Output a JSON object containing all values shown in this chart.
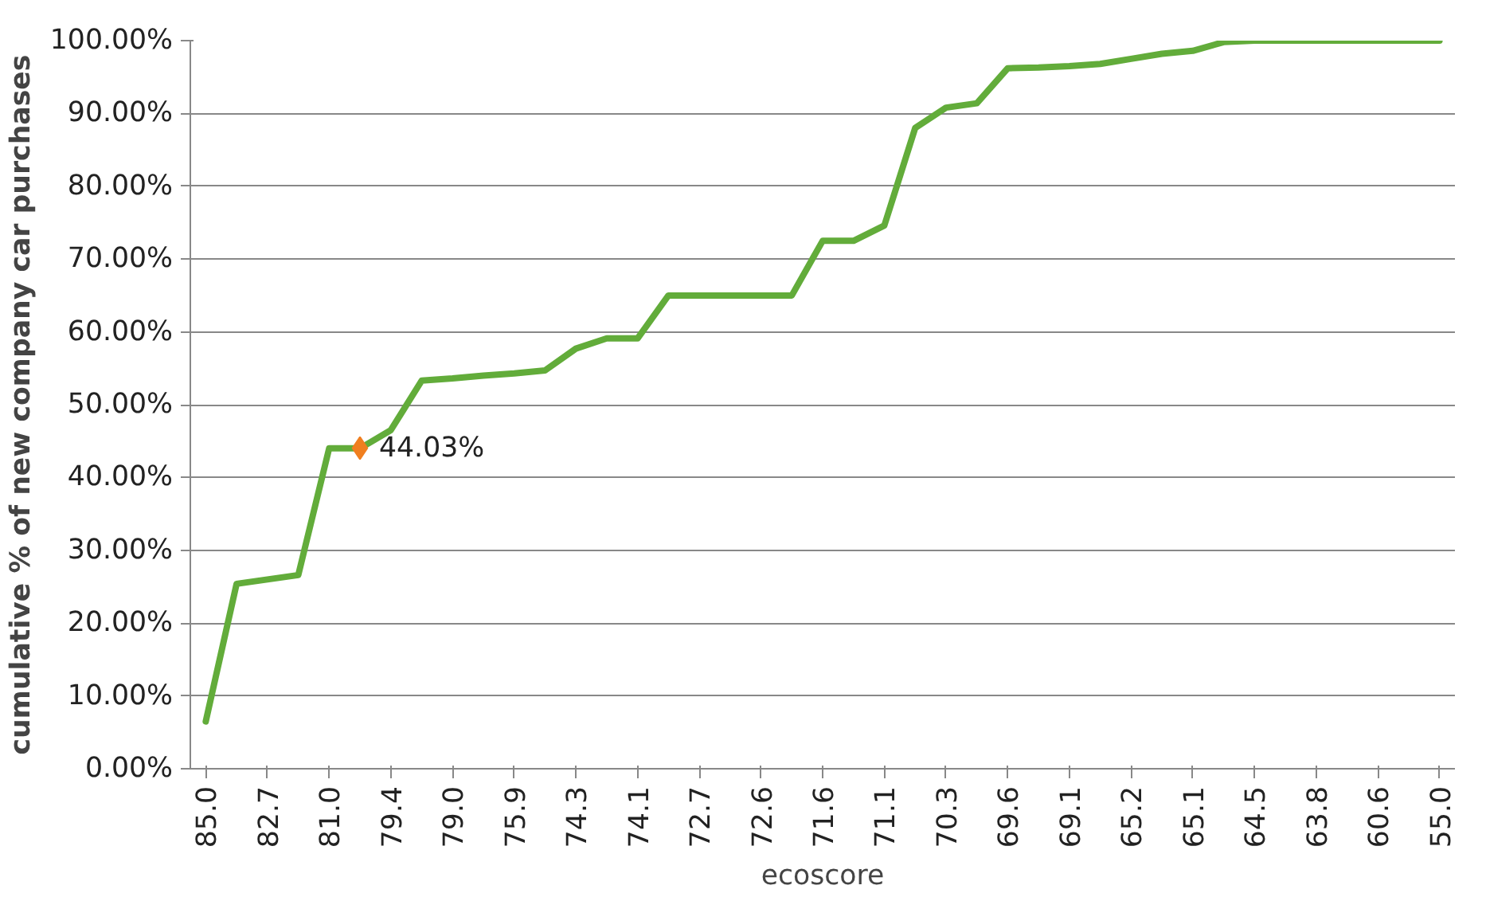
{
  "chart_data": {
    "type": "line",
    "xlabel": "ecoscore",
    "ylabel": "cumulative % of new company car purchases",
    "categories": [
      "85.0",
      null,
      "82.7",
      null,
      "81.0",
      null,
      "79.4",
      null,
      "79.0",
      null,
      "75.9",
      null,
      "74.3",
      null,
      "74.1",
      null,
      "72.7",
      null,
      "72.6",
      null,
      "71.6",
      null,
      "71.1",
      null,
      "70.3",
      null,
      "69.6",
      null,
      "69.1",
      null,
      "65.2",
      null,
      "65.1",
      null,
      "64.5",
      null,
      "63.8",
      null,
      "60.6",
      null,
      "55.0"
    ],
    "series": [
      {
        "color": "#62ac3a",
        "values": [
          6.5,
          25.4,
          26.0,
          26.6,
          44.0,
          44.0,
          46.5,
          53.3,
          53.6,
          54.0,
          54.3,
          54.7,
          57.7,
          59.1,
          59.1,
          65.0,
          65.0,
          65.0,
          65.0,
          65.0,
          72.5,
          72.5,
          74.6,
          88.0,
          90.8,
          91.4,
          96.2,
          96.3,
          96.5,
          96.8,
          97.5,
          98.2,
          98.6,
          99.8,
          100,
          100,
          100,
          100,
          100,
          100,
          100
        ]
      },
      {
        "type": "scatter",
        "color": "#f07f20",
        "marker": "diamond",
        "values": [
          null,
          null,
          null,
          null,
          null,
          44.03,
          null,
          null,
          null,
          null,
          null,
          null,
          null,
          null,
          null,
          null,
          null,
          null,
          null,
          null,
          null,
          null,
          null,
          null,
          null,
          null,
          null,
          null,
          null,
          null,
          null,
          null,
          null,
          null,
          null,
          null,
          null,
          null,
          null,
          null,
          null
        ],
        "value_labels": [
          null,
          null,
          null,
          null,
          null,
          "44.03%",
          null,
          null,
          null,
          null,
          null,
          null,
          null,
          null,
          null,
          null,
          null,
          null,
          null,
          null,
          null,
          null,
          null,
          null,
          null,
          null,
          null,
          null,
          null,
          null,
          null,
          null,
          null,
          null,
          null,
          null,
          null,
          null,
          null,
          null,
          null
        ]
      }
    ],
    "ylim": [
      0,
      100
    ],
    "yticks": [
      {
        "value": 0,
        "label": "0.00%"
      },
      {
        "value": 10,
        "label": "10.00%"
      },
      {
        "value": 20,
        "label": "20.00%"
      },
      {
        "value": 30,
        "label": "30.00%"
      },
      {
        "value": 40,
        "label": "40.00%"
      },
      {
        "value": 50,
        "label": "50.00%"
      },
      {
        "value": 60,
        "label": "60.00%"
      },
      {
        "value": 70,
        "label": "70.00%"
      },
      {
        "value": 80,
        "label": "80.00%"
      },
      {
        "value": 90,
        "label": "90.00%"
      },
      {
        "value": 100,
        "label": "100.00%"
      }
    ],
    "grid": "y"
  }
}
